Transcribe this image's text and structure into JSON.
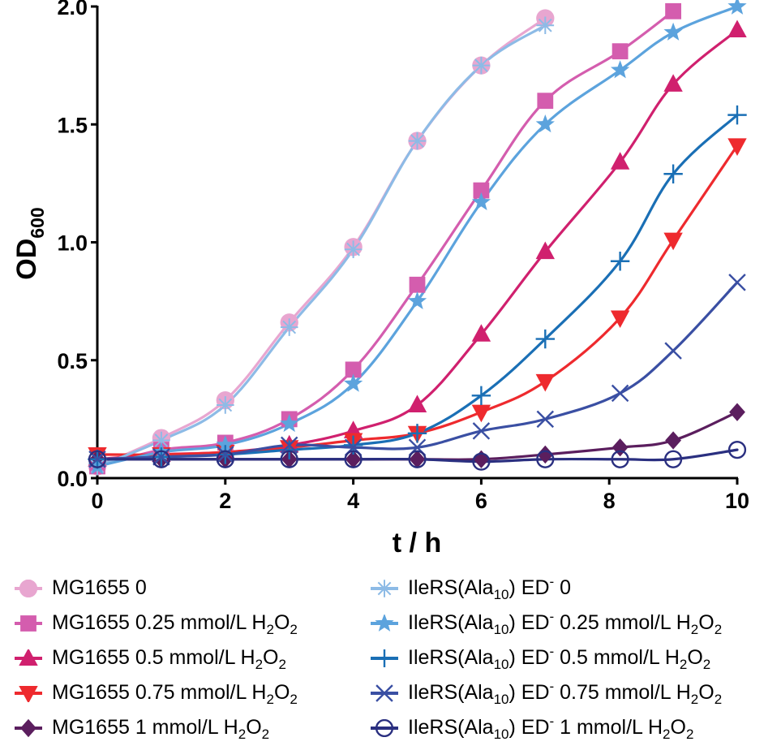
{
  "chart_data": {
    "type": "line",
    "title": "",
    "xlabel": "t / h",
    "ylabel": "OD",
    "ylabel_sub": "600",
    "xlim": [
      0,
      10
    ],
    "ylim": [
      0,
      2.0
    ],
    "xticks": [
      0,
      2,
      4,
      6,
      8,
      10
    ],
    "xtick_labels": [
      "0",
      "2",
      "4",
      "6",
      "8",
      "10"
    ],
    "yticks": [
      0,
      0.5,
      1.0,
      1.5,
      2.0
    ],
    "ytick_labels": [
      "0.0",
      "0.5",
      "1.0",
      "1.5",
      "2.0"
    ],
    "grid": false,
    "legend_position": "bottom",
    "series": [
      {
        "name": "MG1655 0",
        "strain": "MG1655",
        "treatment": "0",
        "marker": "circle",
        "color": "#E8A6D0",
        "x": [
          0,
          1,
          2,
          3,
          4,
          5,
          6,
          7
        ],
        "y": [
          0.05,
          0.17,
          0.33,
          0.66,
          0.98,
          1.43,
          1.75,
          1.95
        ]
      },
      {
        "name": "MG1655 0.25 mmol/L H2O2",
        "strain": "MG1655",
        "treatment": "0.25 mmol/L H2O2",
        "marker": "square",
        "color": "#D45DAE",
        "x": [
          0,
          1,
          2,
          3,
          4,
          5,
          6,
          7,
          8.17,
          9
        ],
        "y": [
          0.05,
          0.12,
          0.15,
          0.25,
          0.46,
          0.82,
          1.22,
          1.6,
          1.81,
          1.98
        ]
      },
      {
        "name": "MG1655 0.5 mmol/L H2O2",
        "strain": "MG1655",
        "treatment": "0.5 mmol/L H2O2",
        "marker": "triangle-up",
        "color": "#D0206E",
        "x": [
          0,
          1,
          2,
          3,
          4,
          5,
          6,
          7,
          8.17,
          9,
          10
        ],
        "y": [
          0.08,
          0.1,
          0.11,
          0.14,
          0.2,
          0.31,
          0.61,
          0.96,
          1.34,
          1.67,
          1.9
        ]
      },
      {
        "name": "MG1655 0.75 mmol/L H2O2",
        "strain": "MG1655",
        "treatment": "0.75 mmol/L H2O2",
        "marker": "triangle-down",
        "color": "#EE2A2E",
        "x": [
          0,
          1,
          2,
          3,
          4,
          5,
          6,
          7,
          8.17,
          9,
          10
        ],
        "y": [
          0.1,
          0.1,
          0.11,
          0.13,
          0.16,
          0.19,
          0.28,
          0.41,
          0.68,
          1.01,
          1.41
        ]
      },
      {
        "name": "MG1655 1 mmol/L H2O2",
        "strain": "MG1655",
        "treatment": "1 mmol/L H2O2",
        "marker": "diamond",
        "color": "#5B1E5E",
        "x": [
          0,
          1,
          2,
          3,
          4,
          5,
          6,
          7,
          8.17,
          9,
          10
        ],
        "y": [
          0.08,
          0.08,
          0.08,
          0.08,
          0.08,
          0.08,
          0.08,
          0.1,
          0.13,
          0.16,
          0.28
        ]
      },
      {
        "name": "IleRS(Ala10) ED- 0",
        "strain": "IleRS(Ala10) ED-",
        "treatment": "0",
        "marker": "asterisk",
        "color": "#8DBBE6",
        "x": [
          0,
          1,
          2,
          3,
          4,
          5,
          6,
          7
        ],
        "y": [
          0.05,
          0.16,
          0.31,
          0.64,
          0.97,
          1.43,
          1.75,
          1.92
        ]
      },
      {
        "name": "IleRS(Ala10) ED- 0.25 mmol/L H2O2",
        "strain": "IleRS(Ala10) ED-",
        "treatment": "0.25 mmol/L H2O2",
        "marker": "star",
        "color": "#5CA3DD",
        "x": [
          0,
          1,
          2,
          3,
          4,
          5,
          6,
          7,
          8.17,
          9,
          10
        ],
        "y": [
          0.05,
          0.11,
          0.14,
          0.23,
          0.4,
          0.75,
          1.17,
          1.5,
          1.73,
          1.89,
          2.0
        ]
      },
      {
        "name": "IleRS(Ala10) ED- 0.5 mmol/L H2O2",
        "strain": "IleRS(Ala10) ED-",
        "treatment": "0.5 mmol/L H2O2",
        "marker": "plus",
        "color": "#1A6FB5",
        "x": [
          0,
          1,
          2,
          3,
          4,
          5,
          6,
          7,
          8.17,
          9,
          10
        ],
        "y": [
          0.08,
          0.09,
          0.1,
          0.12,
          0.14,
          0.19,
          0.35,
          0.59,
          0.92,
          1.29,
          1.54
        ]
      },
      {
        "name": "IleRS(Ala10) ED- 0.75 mmol/L H2O2",
        "strain": "IleRS(Ala10) ED-",
        "treatment": "0.75 mmol/L H2O2",
        "marker": "x",
        "color": "#3A4FA3",
        "x": [
          0,
          1,
          2,
          3,
          4,
          5,
          6,
          7,
          8.17,
          9,
          10
        ],
        "y": [
          0.08,
          0.09,
          0.1,
          0.14,
          0.13,
          0.13,
          0.2,
          0.25,
          0.36,
          0.54,
          0.83
        ]
      },
      {
        "name": "IleRS(Ala10) ED- 1 mmol/L H2O2",
        "strain": "IleRS(Ala10) ED-",
        "treatment": "1 mmol/L H2O2",
        "marker": "circle-open",
        "color": "#2A2F80",
        "x": [
          0,
          1,
          2,
          3,
          4,
          5,
          6,
          7,
          8.17,
          9,
          10
        ],
        "y": [
          0.08,
          0.08,
          0.08,
          0.08,
          0.08,
          0.08,
          0.07,
          0.08,
          0.08,
          0.08,
          0.12
        ]
      }
    ]
  },
  "legend": {
    "left": [
      {
        "strain": "MG1655",
        "dose": "0",
        "has_h2o2": false
      },
      {
        "strain": "MG1655",
        "dose": "0.25 mmol/L",
        "has_h2o2": true
      },
      {
        "strain": "MG1655",
        "dose": "0.5 mmol/L",
        "has_h2o2": true
      },
      {
        "strain": "MG1655",
        "dose": "0.75 mmol/L",
        "has_h2o2": true
      },
      {
        "strain": "MG1655",
        "dose": "1 mmol/L",
        "has_h2o2": true
      }
    ],
    "right": [
      {
        "strain_prefix": "IleRS(Ala",
        "strain_sub": "10",
        "strain_suffix": ") ED",
        "strain_sup": "-",
        "dose": "0",
        "has_h2o2": false
      },
      {
        "strain_prefix": "IleRS(Ala",
        "strain_sub": "10",
        "strain_suffix": ") ED",
        "strain_sup": "-",
        "dose": "0.25 mmol/L",
        "has_h2o2": true
      },
      {
        "strain_prefix": "IleRS(Ala",
        "strain_sub": "10",
        "strain_suffix": ") ED",
        "strain_sup": "-",
        "dose": "0.5 mmol/L",
        "has_h2o2": true
      },
      {
        "strain_prefix": "IleRS(Ala",
        "strain_sub": "10",
        "strain_suffix": ") ED",
        "strain_sup": "-",
        "dose": "0.75 mmol/L",
        "has_h2o2": true
      },
      {
        "strain_prefix": "IleRS(Ala",
        "strain_sub": "10",
        "strain_suffix": ") ED",
        "strain_sup": "-",
        "dose": "1 mmol/L",
        "has_h2o2": true
      }
    ],
    "h2o2": {
      "h": "H",
      "sub1": "2",
      "o": "O",
      "sub2": "2"
    }
  }
}
